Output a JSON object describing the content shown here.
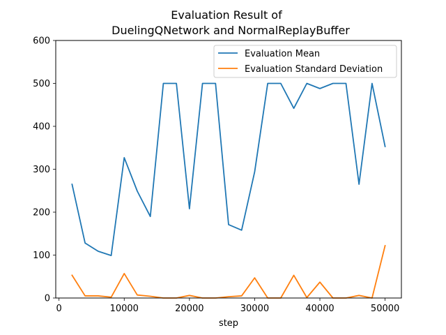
{
  "chart_data": {
    "type": "line",
    "title_lines": [
      "Evaluation Result of",
      "DuelingQNetwork and NormalReplayBuffer"
    ],
    "xlabel": "step",
    "ylabel": "",
    "xlim": [
      -500,
      52500
    ],
    "ylim": [
      0,
      600
    ],
    "xticks": [
      0,
      10000,
      20000,
      30000,
      40000,
      50000
    ],
    "yticks": [
      0,
      100,
      200,
      300,
      400,
      500,
      600
    ],
    "grid": false,
    "legend_position": "top-right",
    "x": [
      2000,
      4000,
      6000,
      8000,
      10000,
      12000,
      14000,
      16000,
      18000,
      20000,
      22000,
      24000,
      26000,
      28000,
      30000,
      32000,
      34000,
      36000,
      38000,
      40000,
      42000,
      44000,
      46000,
      48000,
      50000
    ],
    "series": [
      {
        "name": "Evaluation Mean",
        "color": "#1f77b4",
        "values": [
          265,
          128,
          109,
          99,
          327,
          249,
          190,
          500,
          500,
          208,
          500,
          500,
          171,
          158,
          294,
          500,
          500,
          442,
          500,
          488,
          500,
          500,
          265,
          500,
          353
        ]
      },
      {
        "name": "Evaluation Standard Deviation",
        "color": "#ff7f0e",
        "values": [
          53,
          5,
          5,
          2,
          57,
          7,
          4,
          0,
          0,
          6,
          0,
          0,
          3,
          5,
          47,
          0,
          0,
          53,
          1,
          37,
          0,
          0,
          6,
          0,
          122
        ]
      }
    ]
  }
}
